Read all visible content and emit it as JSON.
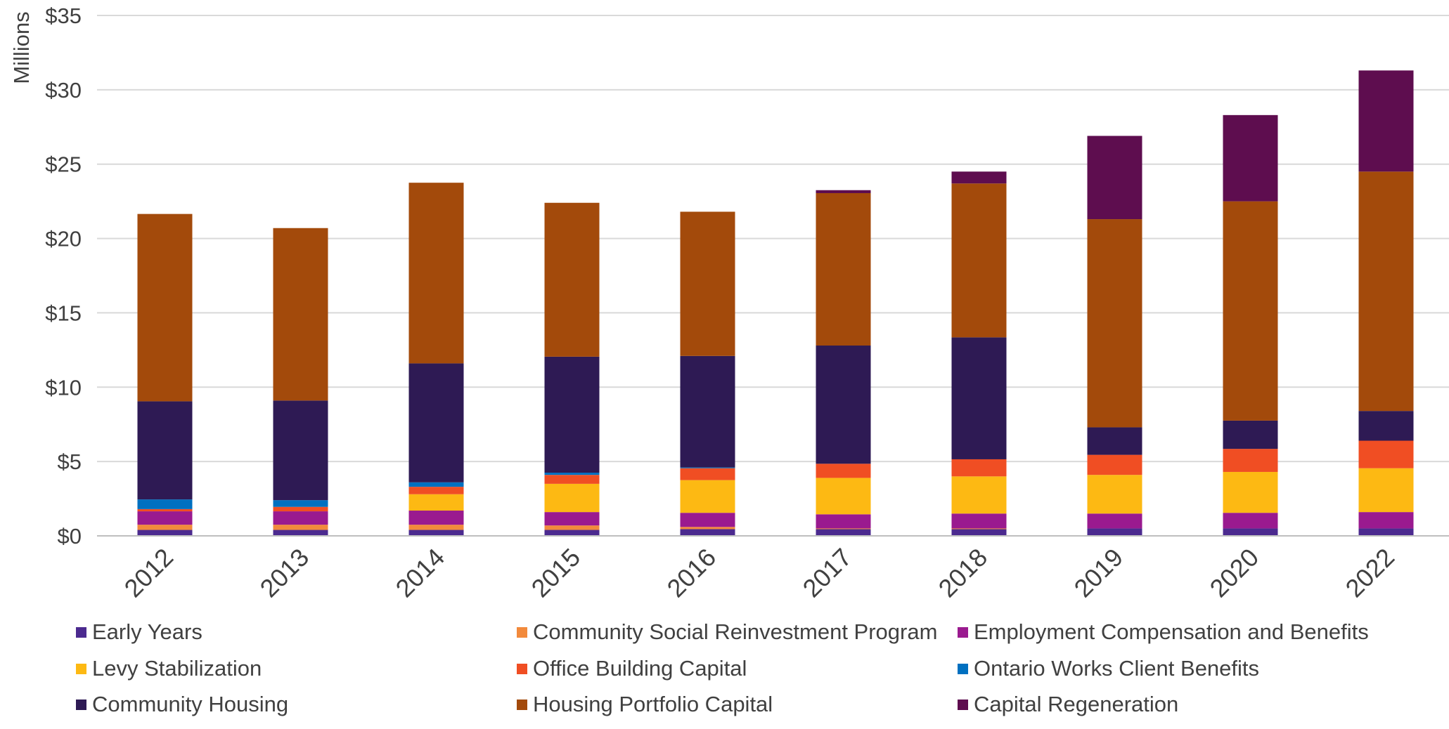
{
  "chart_data": {
    "type": "bar",
    "stacked": true,
    "ylabel": "Millions",
    "ylim": [
      0,
      35
    ],
    "yticks": [
      "$0",
      "$5",
      "$10",
      "$15",
      "$20",
      "$25",
      "$30",
      "$35"
    ],
    "ytick_values": [
      0,
      5,
      10,
      15,
      20,
      25,
      30,
      35
    ],
    "grid": true,
    "legend_position": "bottom",
    "categories": [
      "2012",
      "2013",
      "2014",
      "2015",
      "2016",
      "2017",
      "2018",
      "2019",
      "2020",
      "2022"
    ],
    "series": [
      {
        "name": "Early Years",
        "color": "#4B2A8F",
        "values": [
          0.4,
          0.4,
          0.4,
          0.4,
          0.45,
          0.45,
          0.45,
          0.5,
          0.5,
          0.5
        ]
      },
      {
        "name": "Community Social Reinvestment Program",
        "color": "#F28A3C",
        "values": [
          0.35,
          0.35,
          0.35,
          0.3,
          0.15,
          0.05,
          0.05,
          0.0,
          0.0,
          0.0
        ]
      },
      {
        "name": "Employment Compensation and Benefits",
        "color": "#9A1A8F",
        "values": [
          0.9,
          0.9,
          0.95,
          0.9,
          0.95,
          0.95,
          1.0,
          1.0,
          1.05,
          1.1
        ]
      },
      {
        "name": "Levy Stabilization",
        "color": "#FDB913",
        "values": [
          0.0,
          0.0,
          1.1,
          1.9,
          2.2,
          2.45,
          2.5,
          2.6,
          2.75,
          2.95
        ]
      },
      {
        "name": "Office Building Capital",
        "color": "#F04E23",
        "values": [
          0.15,
          0.3,
          0.5,
          0.6,
          0.8,
          0.95,
          1.15,
          1.35,
          1.55,
          1.85
        ]
      },
      {
        "name": "Ontario Works Client Benefits",
        "color": "#0070C0",
        "values": [
          0.65,
          0.45,
          0.3,
          0.15,
          0.05,
          0.0,
          0.0,
          0.0,
          0.0,
          0.0
        ]
      },
      {
        "name": "Community Housing",
        "color": "#2E1A54",
        "values": [
          6.6,
          6.7,
          8.0,
          7.8,
          7.5,
          7.95,
          8.2,
          1.85,
          1.9,
          2.0
        ]
      },
      {
        "name": "Housing Portfolio Capital",
        "color": "#A34A0B",
        "values": [
          12.6,
          11.6,
          12.15,
          10.35,
          9.7,
          10.25,
          10.35,
          14.0,
          14.75,
          16.1
        ]
      },
      {
        "name": "Capital Regeneration",
        "color": "#5E0D4F",
        "values": [
          0.0,
          0.0,
          0.0,
          0.0,
          0.0,
          0.2,
          0.8,
          5.6,
          5.8,
          6.8
        ]
      }
    ]
  }
}
